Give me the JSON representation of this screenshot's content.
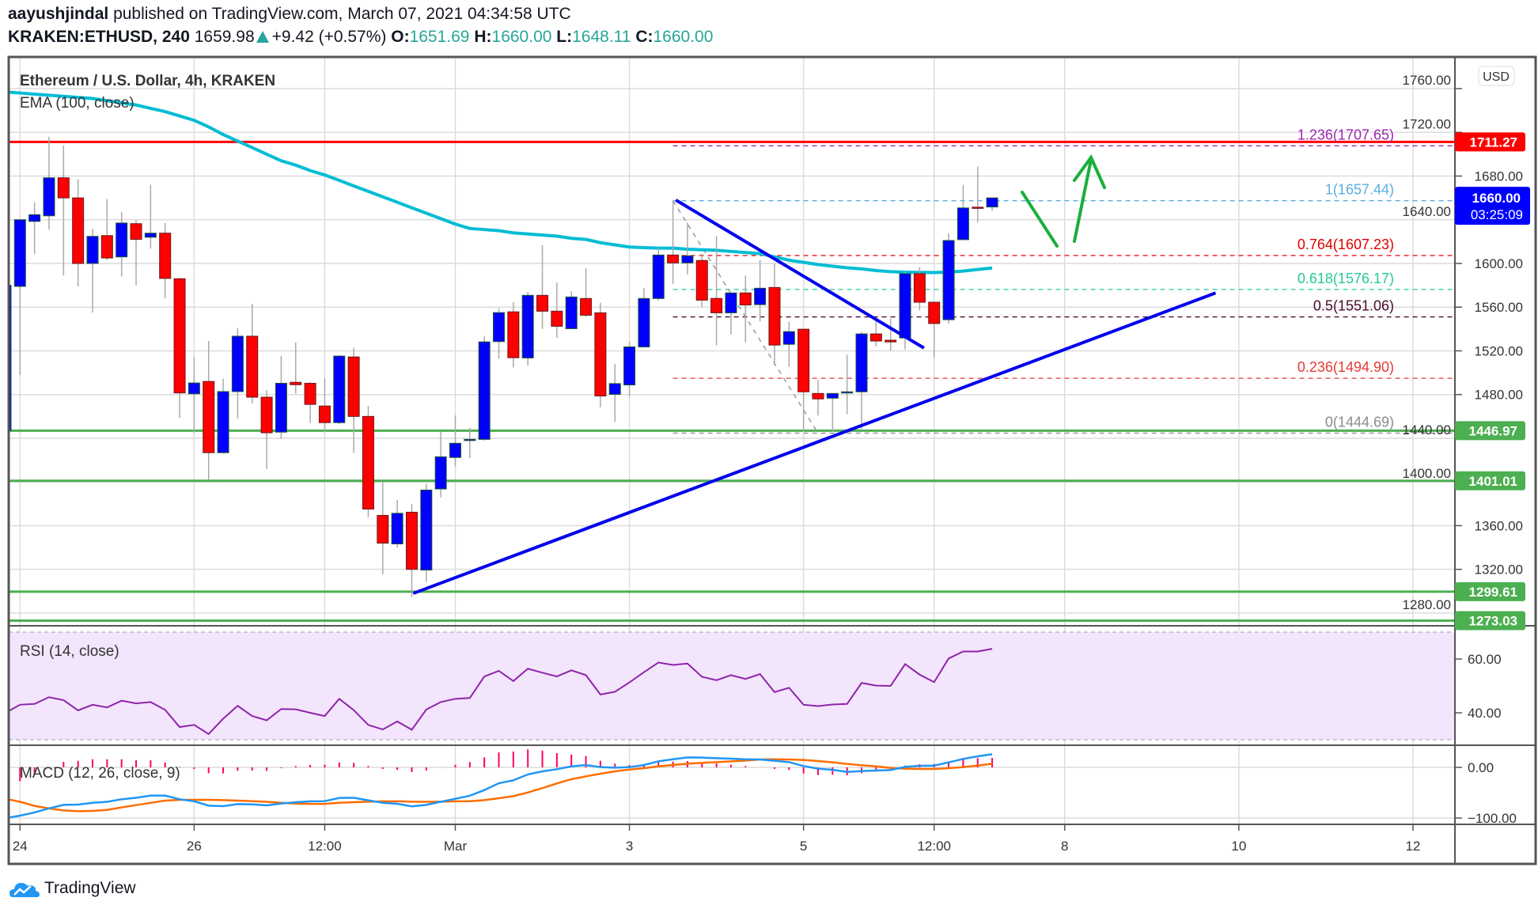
{
  "header": {
    "author": "aayushjindal",
    "published": "published on TradingView.com, March 07, 2021 04:34:58 UTC",
    "symbol": "KRAKEN:ETHUSD, 240",
    "last": "1659.98",
    "change": "+9.42 (+0.57%)",
    "o_label": "O:",
    "o": "1651.69",
    "h_label": "H:",
    "h": "1660.00",
    "l_label": "L:",
    "l": "1648.11",
    "c_label": "C:",
    "c": "1660.00",
    "change_icon": "triangle-up-icon"
  },
  "legend": {
    "title": "Ethereum / U.S. Dollar, 4h, KRAKEN",
    "ema": "EMA (100, close)",
    "rsi": "RSI (14, close)",
    "macd": "MACD (12, 26, close, 9)"
  },
  "currency": "USD",
  "countdown": "03:25:09",
  "logo": "TradingView",
  "colors": {
    "up": "#0000ff",
    "down": "#ff0000",
    "ema": "#00bcd4",
    "support": "#4caf50",
    "resistance": "#ff0000",
    "trendline": "#0000ee",
    "rsi": "#8e24aa",
    "macd": "#2196f3",
    "signal": "#ff6d00",
    "histogram": "#ff0066",
    "arrow": "#1aaf3a"
  },
  "chart_data": {
    "type": "candlestick",
    "interval": "4h",
    "first_candle_time": "2021-02-23T20:00",
    "ylim": [
      1265,
      1775
    ],
    "grid": true,
    "price_ticks": [
      "1760.00",
      "1720.00",
      "1680.00",
      "1640.00",
      "1600.00",
      "1560.00",
      "1520.00",
      "1480.00",
      "1440.00",
      "1400.00",
      "1360.00",
      "1320.00",
      "1280.00"
    ],
    "time_labels": [
      {
        "label": "24",
        "t": "2021-02-24T00:00"
      },
      {
        "label": "26",
        "t": "2021-02-26T00:00"
      },
      {
        "label": "12:00",
        "t": "2021-02-27T12:00"
      },
      {
        "label": "Mar",
        "t": "2021-03-01T00:00"
      },
      {
        "label": "3",
        "t": "2021-03-03T00:00"
      },
      {
        "label": "5",
        "t": "2021-03-05T00:00"
      },
      {
        "label": "12:00",
        "t": "2021-03-06T12:00"
      },
      {
        "label": "8",
        "t": "2021-03-08T00:00"
      },
      {
        "label": "10",
        "t": "2021-03-10T00:00"
      },
      {
        "label": "12",
        "t": "2021-03-12T00:00"
      }
    ],
    "candles_ohlc": [
      [
        1447,
        1585,
        1440,
        1580
      ],
      [
        1579,
        1640,
        1498,
        1640
      ],
      [
        1638.5,
        1656,
        1608.6,
        1644.6
      ],
      [
        1643.6,
        1716,
        1631,
        1678.4
      ],
      [
        1678.4,
        1708,
        1589,
        1660
      ],
      [
        1660,
        1677,
        1579,
        1600
      ],
      [
        1600,
        1631.5,
        1555,
        1624.8
      ],
      [
        1625.5,
        1659,
        1603,
        1605
      ],
      [
        1606,
        1647,
        1588,
        1637
      ],
      [
        1636.4,
        1639.5,
        1580,
        1622
      ],
      [
        1624,
        1672,
        1613.6,
        1627.7
      ],
      [
        1627.7,
        1637,
        1568,
        1586.3
      ],
      [
        1586,
        1587,
        1458.5,
        1481.5
      ],
      [
        1480.7,
        1514,
        1445,
        1490.6
      ],
      [
        1492,
        1529,
        1402,
        1426.8
      ],
      [
        1426.8,
        1494.5,
        1426,
        1482.7
      ],
      [
        1482.7,
        1541,
        1457.8,
        1533.4
      ],
      [
        1533.4,
        1563,
        1472,
        1477.6
      ],
      [
        1477.6,
        1484,
        1412,
        1445
      ],
      [
        1445.6,
        1515.4,
        1439.5,
        1490.3
      ],
      [
        1491.2,
        1527.7,
        1481,
        1489
      ],
      [
        1490.3,
        1491.5,
        1454,
        1471
      ],
      [
        1469.5,
        1495,
        1445.6,
        1454.3
      ],
      [
        1454.3,
        1516,
        1453,
        1515.2
      ],
      [
        1514.4,
        1523,
        1426.5,
        1460
      ],
      [
        1460,
        1469.7,
        1367.7,
        1375.2
      ],
      [
        1369.4,
        1400.4,
        1315.5,
        1344
      ],
      [
        1343.3,
        1383.4,
        1340,
        1371.3
      ],
      [
        1372.3,
        1380,
        1294.7,
        1320
      ],
      [
        1319.4,
        1398.4,
        1308.5,
        1392.6
      ],
      [
        1393.6,
        1445.8,
        1386,
        1423
      ],
      [
        1422.4,
        1461,
        1414.4,
        1435.4
      ],
      [
        1438.5,
        1449.4,
        1422,
        1439
      ],
      [
        1439,
        1533.5,
        1437.8,
        1528.2
      ],
      [
        1528.5,
        1558.7,
        1512.8,
        1555
      ],
      [
        1555.7,
        1564.5,
        1504.8,
        1513.7
      ],
      [
        1513.5,
        1574,
        1506.5,
        1570.8
      ],
      [
        1570.8,
        1616.7,
        1540,
        1556.3
      ],
      [
        1556.3,
        1582.6,
        1532,
        1542.5
      ],
      [
        1540.3,
        1574.6,
        1540,
        1569.3
      ],
      [
        1567.9,
        1595.6,
        1551,
        1552.6
      ],
      [
        1554.8,
        1564,
        1468.3,
        1478.7
      ],
      [
        1480.2,
        1508,
        1455,
        1490
      ],
      [
        1488.8,
        1528.2,
        1478,
        1523.6
      ],
      [
        1523.6,
        1577.5,
        1523,
        1567.9
      ],
      [
        1567.9,
        1615,
        1566,
        1607.7
      ],
      [
        1607.7,
        1657.5,
        1581.4,
        1600.5
      ],
      [
        1600.5,
        1637.5,
        1590,
        1607
      ],
      [
        1602.7,
        1609,
        1560,
        1566.4
      ],
      [
        1568,
        1625,
        1525,
        1554.8
      ],
      [
        1554.8,
        1573,
        1535,
        1573
      ],
      [
        1573,
        1589,
        1528,
        1562
      ],
      [
        1562.3,
        1603,
        1546.8,
        1577.3
      ],
      [
        1578,
        1600,
        1506.7,
        1525.3
      ],
      [
        1526,
        1546.6,
        1505.5,
        1537.6
      ],
      [
        1539.8,
        1540,
        1446,
        1482.5
      ],
      [
        1481,
        1493.4,
        1460.8,
        1476
      ],
      [
        1476.7,
        1481,
        1446,
        1481
      ],
      [
        1482,
        1516.4,
        1462,
        1482.5
      ],
      [
        1482.5,
        1537.6,
        1448.7,
        1535.5
      ],
      [
        1535.5,
        1550,
        1524,
        1529
      ],
      [
        1529.7,
        1549.7,
        1520,
        1528.2
      ],
      [
        1531.8,
        1592.5,
        1521.2,
        1590.6
      ],
      [
        1590.6,
        1596.6,
        1557,
        1564.5
      ],
      [
        1564.5,
        1564.5,
        1513.5,
        1545
      ],
      [
        1548.5,
        1627.5,
        1545,
        1621
      ],
      [
        1621.8,
        1672,
        1621,
        1650.8
      ],
      [
        1651.5,
        1688.7,
        1637.5,
        1650.8
      ],
      [
        1651.69,
        1660,
        1648.11,
        1660
      ]
    ],
    "ema100": [
      1757,
      1756,
      1755,
      1754,
      1753,
      1752,
      1751,
      1749,
      1747,
      1745,
      1742,
      1739,
      1735,
      1731,
      1725,
      1718,
      1712,
      1706,
      1700,
      1694,
      1690,
      1685,
      1681,
      1676,
      1671,
      1666,
      1661,
      1656,
      1651,
      1646,
      1641,
      1636,
      1632,
      1631,
      1630,
      1628,
      1627,
      1626,
      1625,
      1623,
      1622,
      1619,
      1617,
      1615,
      1614.5,
      1614,
      1614,
      1613,
      1612.5,
      1612,
      1611,
      1610,
      1609,
      1606,
      1603,
      1601,
      1599,
      1597.5,
      1596,
      1595,
      1593.5,
      1592.5,
      1592,
      1591.8,
      1591.7,
      1592,
      1593,
      1594.5,
      1595.8
    ],
    "horizontal_levels": [
      {
        "price": 1711.27,
        "label": "1711.27",
        "kind": "resistance"
      },
      {
        "price": 1446.97,
        "label": "1446.97",
        "kind": "support"
      },
      {
        "price": 1401.01,
        "label": "1401.01",
        "kind": "support"
      },
      {
        "price": 1299.61,
        "label": "1299.61",
        "kind": "support"
      },
      {
        "price": 1273.03,
        "label": "1273.03",
        "kind": "support"
      }
    ],
    "last_price": {
      "price": 1660.0,
      "label": "1660.00"
    },
    "fibonacci": {
      "start_t": "2021-03-03T12:00",
      "end_t": "2021-03-05T04:00",
      "levels": [
        {
          "label": "1.236(1707.65)",
          "price": 1707.65,
          "color": "#9c27b0"
        },
        {
          "label": "1(1657.44)",
          "price": 1657.44,
          "color": "#5aaee0"
        },
        {
          "label": "0.764(1607.23)",
          "price": 1607.23,
          "color": "#e00000"
        },
        {
          "label": "0.618(1576.17)",
          "price": 1576.17,
          "color": "#26c99a"
        },
        {
          "label": "0.5(1551.06)",
          "price": 1551.06,
          "color": "#4a0a2a"
        },
        {
          "label": "0.236(1494.90)",
          "price": 1494.9,
          "color": "#e53935"
        },
        {
          "label": "0(1444.69)",
          "price": 1444.69,
          "color": "#8a8a8a"
        }
      ]
    },
    "trendlines": [
      {
        "from": {
          "t": "2021-03-03T12:48",
          "price": 1658
        },
        "to": {
          "t": "2021-03-06T09:12",
          "price": 1522.6
        }
      },
      {
        "from": {
          "t": "2021-02-28T12:24",
          "price": 1298
        },
        "to": {
          "t": "2021-03-09T17:36",
          "price": 1573
        }
      }
    ],
    "rsi": {
      "ylim": [
        15,
        85
      ],
      "ticks": [
        "60.00",
        "40.00"
      ],
      "band": [
        30,
        70
      ],
      "values": [
        40,
        43.0,
        43.3,
        45.8,
        44.7,
        40.9,
        43.0,
        42.0,
        44.5,
        43.5,
        44.0,
        41.1,
        34.7,
        35.5,
        32.1,
        37.8,
        42.6,
        38.8,
        37.2,
        41.4,
        41.3,
        40.0,
        38.8,
        45.2,
        41.0,
        35.5,
        33.8,
        36.8,
        33.7,
        41.2,
        44.0,
        45.2,
        45.5,
        53.5,
        55.6,
        51.8,
        56.4,
        54.9,
        53.5,
        55.8,
        54.0,
        46.8,
        47.8,
        51.3,
        55.1,
        58.7,
        57.8,
        58.3,
        53.4,
        52.1,
        54.0,
        52.6,
        54.4,
        47.7,
        49.3,
        43.0,
        42.5,
        43.1,
        43.3,
        51.1,
        50.1,
        50.0,
        58.1,
        54.2,
        51.4,
        60.2,
        62.8,
        62.8,
        63.8
      ]
    },
    "macd": {
      "ticks": [
        "0.00",
        "−100.00"
      ],
      "macd": [
        -100,
        -95.3,
        -89,
        -81,
        -74,
        -73.4,
        -70,
        -68,
        -63,
        -60,
        -55.7,
        -55.7,
        -63,
        -67,
        -75.5,
        -76.6,
        -72.4,
        -73,
        -75,
        -71.4,
        -68.8,
        -67,
        -66.7,
        -60.4,
        -60,
        -65,
        -70,
        -71.9,
        -77,
        -74,
        -68,
        -62,
        -56,
        -44.8,
        -31.3,
        -25.5,
        -14,
        -7.8,
        -3.6,
        2,
        4.7,
        0.5,
        -0.5,
        0.5,
        4.7,
        12,
        16,
        19.8,
        19.3,
        18.2,
        17.2,
        16,
        15.6,
        13,
        10.4,
        2.6,
        -2.6,
        -4.7,
        -8.9,
        -7.3,
        -6.3,
        -5.2,
        1,
        3.1,
        3.6,
        9.9,
        16.7,
        21.9,
        26
      ],
      "signal": [
        -62,
        -68,
        -76,
        -81,
        -85,
        -86.5,
        -86,
        -84,
        -79,
        -74.5,
        -70,
        -65.6,
        -64,
        -64,
        -64,
        -64.6,
        -65.6,
        -66.7,
        -68,
        -70,
        -71.4,
        -72,
        -72,
        -70,
        -68.8,
        -67.7,
        -67,
        -67,
        -67.7,
        -68,
        -67.7,
        -67,
        -66.7,
        -64.6,
        -61,
        -56.8,
        -49.5,
        -41,
        -31.8,
        -23.4,
        -17.7,
        -12.5,
        -7.8,
        -4.2,
        -1.6,
        2,
        4.7,
        7.3,
        8.9,
        10.4,
        12,
        13.5,
        15.6,
        16,
        15.6,
        14.6,
        12.5,
        9.9,
        6.8,
        4.2,
        2,
        -1,
        -2.6,
        -3.1,
        -3.1,
        -1.6,
        0.5,
        3.6,
        7.3
      ],
      "histogram": [
        -38,
        -27.3,
        -13,
        0,
        11,
        13.1,
        16,
        16,
        16,
        14.5,
        14.3,
        9.9,
        1,
        -3,
        -11.5,
        -12,
        -6.8,
        -6.3,
        -7,
        -1.4,
        2.6,
        5,
        5.3,
        9.6,
        8.8,
        2.7,
        -3,
        -4.9,
        -9.3,
        -6,
        -0.3,
        5,
        10.7,
        19.8,
        29.7,
        31.3,
        35.5,
        33.2,
        28.2,
        25.4,
        22.4,
        13,
        7.3,
        4.7,
        6.3,
        10,
        11.3,
        12.5,
        10.4,
        7.8,
        5.2,
        2.5,
        0,
        -3,
        -5.2,
        -12,
        -15.1,
        -14.6,
        -15.7,
        -11.5,
        -8.3,
        -4.2,
        3.6,
        6.2,
        6.7,
        11.5,
        16.2,
        18.3,
        18.7
      ]
    }
  }
}
